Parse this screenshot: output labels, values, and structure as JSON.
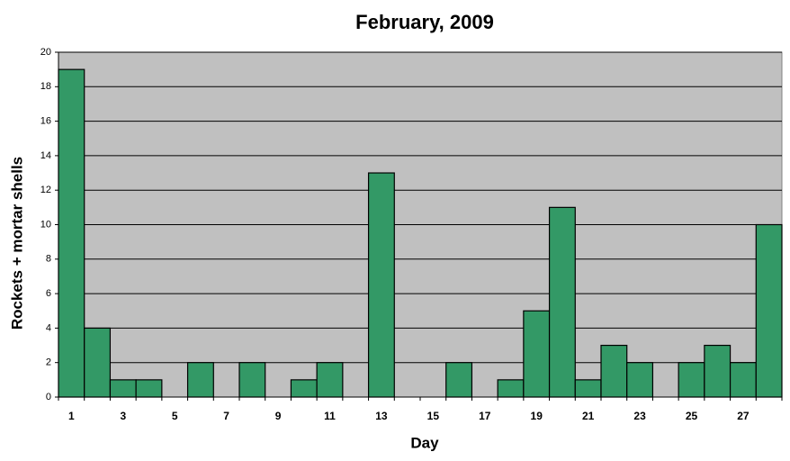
{
  "chart_data": {
    "type": "bar",
    "title": "February, 2009",
    "x_label": "Day",
    "y_label": "Rockets + mortar shells",
    "categories": [
      "1",
      null,
      "3",
      null,
      "5",
      null,
      "7",
      null,
      "9",
      null,
      "11",
      null,
      "13",
      null,
      "15",
      null,
      "17",
      null,
      "19",
      null,
      "21",
      null,
      "23",
      null,
      "25",
      null,
      "27",
      null
    ],
    "values": [
      19,
      4,
      1,
      1,
      0,
      2,
      0,
      2,
      0,
      1,
      2,
      0,
      13,
      0,
      0,
      2,
      0,
      1,
      5,
      11,
      1,
      3,
      2,
      0,
      2,
      3,
      2,
      10
    ],
    "color": "#339966",
    "ylim": [
      0,
      20
    ],
    "yticks": [
      0,
      2,
      4,
      6,
      8,
      10,
      12,
      14,
      16,
      18,
      20
    ],
    "grid": true
  }
}
